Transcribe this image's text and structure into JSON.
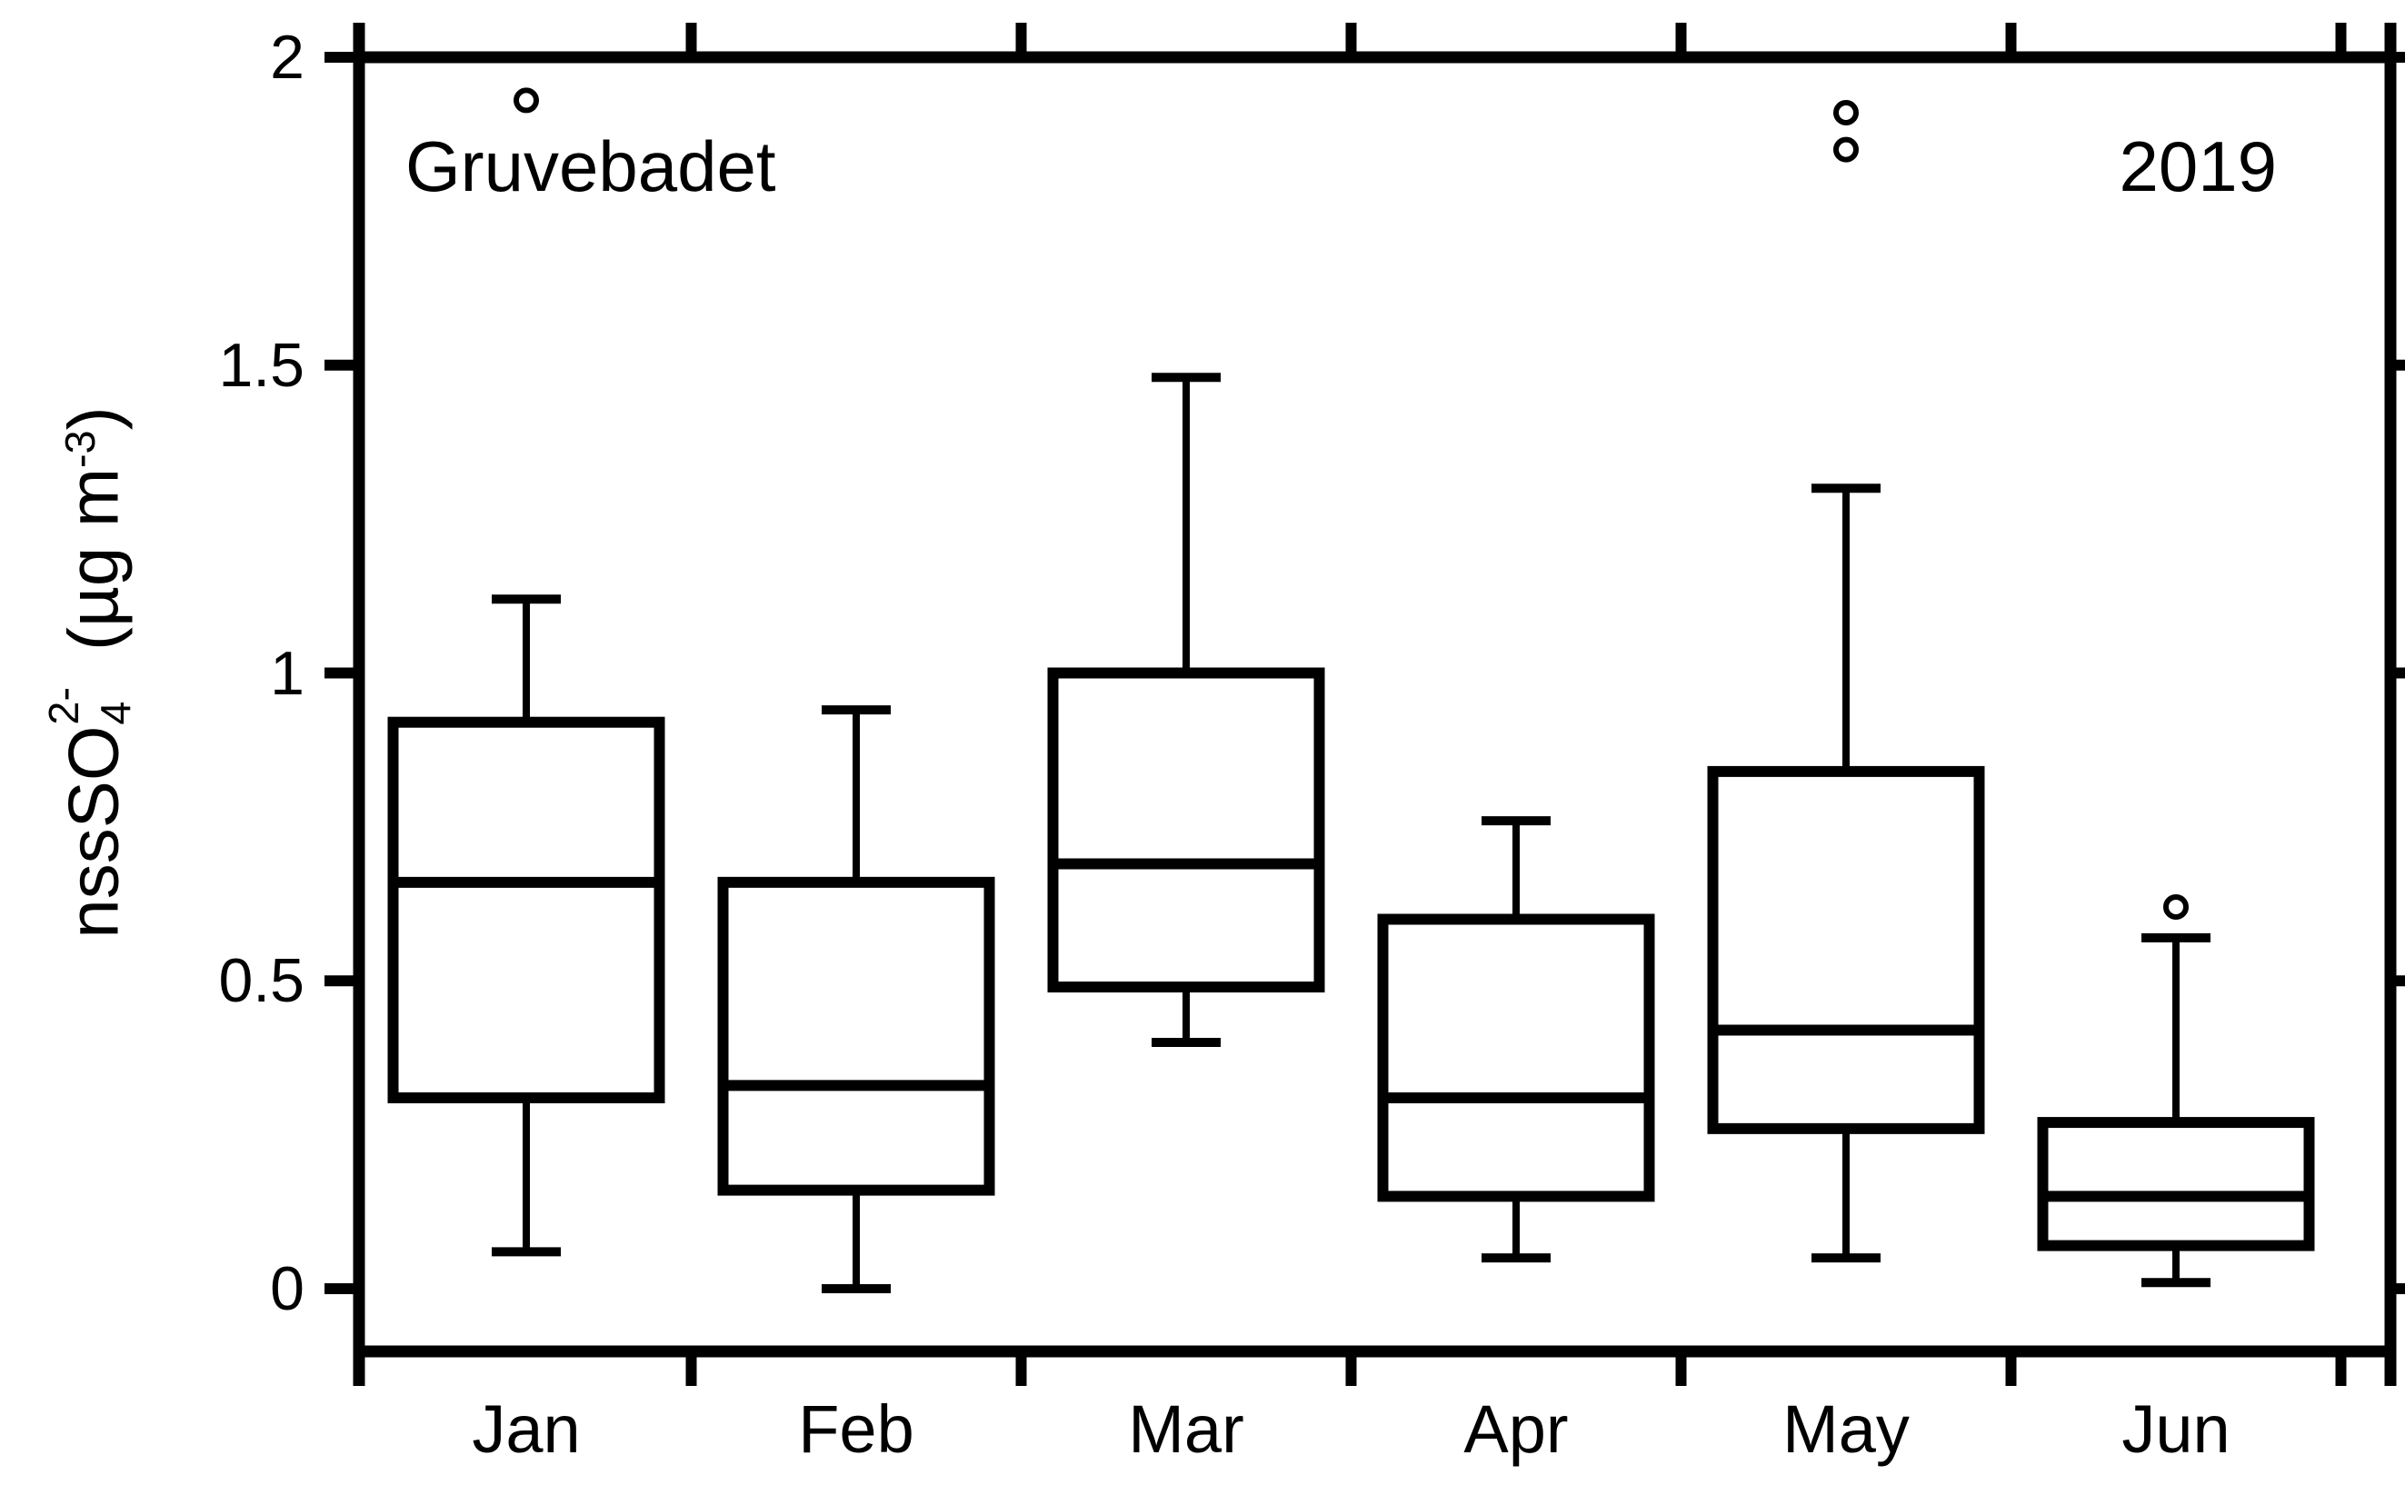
{
  "figure": {
    "station_label": "Gruvebadet",
    "year_label": "2019",
    "colors": {
      "foreground": "#000000",
      "background": "#ffffff"
    },
    "y_axis": {
      "label_parts": {
        "base": "nssSO",
        "sub": "4",
        "sup": "2-",
        "mid": " (µg m",
        "sup2": "-3",
        "end": ")"
      },
      "ticks": [
        {
          "value": 2,
          "label": "2"
        },
        {
          "value": 1.5,
          "label": "1.5"
        },
        {
          "value": 1,
          "label": "1"
        },
        {
          "value": 0.5,
          "label": "0.5"
        },
        {
          "value": 0,
          "label": "0"
        }
      ]
    },
    "x_axis": {
      "categories": [
        "Jan",
        "Feb",
        "Mar",
        "Apr",
        "May",
        "Jun"
      ]
    }
  },
  "chart_data": {
    "type": "box",
    "title": "Gruvebadet 2019",
    "xlabel": "",
    "ylabel": "nssSO4^2- (µg m^-3)",
    "ylim": [
      0,
      2
    ],
    "yticks": [
      0,
      0.5,
      1,
      1.5,
      2
    ],
    "grid": false,
    "legend_position": "none",
    "categories": [
      "Jan",
      "Feb",
      "Mar",
      "Apr",
      "May",
      "Jun"
    ],
    "series": [
      {
        "name": "Jan",
        "min": 0.06,
        "q1": 0.31,
        "median": 0.66,
        "q3": 0.92,
        "max": 1.12,
        "outliers": [
          1.93
        ]
      },
      {
        "name": "Feb",
        "min": 0.0,
        "q1": 0.16,
        "median": 0.33,
        "q3": 0.66,
        "max": 0.94,
        "outliers": []
      },
      {
        "name": "Mar",
        "min": 0.4,
        "q1": 0.49,
        "median": 0.69,
        "q3": 1.0,
        "max": 1.48,
        "outliers": []
      },
      {
        "name": "Apr",
        "min": 0.05,
        "q1": 0.15,
        "median": 0.31,
        "q3": 0.6,
        "max": 0.76,
        "outliers": []
      },
      {
        "name": "May",
        "min": 0.05,
        "q1": 0.26,
        "median": 0.42,
        "q3": 0.84,
        "max": 1.3,
        "outliers": [
          1.91,
          1.85
        ]
      },
      {
        "name": "Jun",
        "min": 0.01,
        "q1": 0.07,
        "median": 0.15,
        "q3": 0.27,
        "max": 0.57,
        "outliers": [
          0.62
        ]
      }
    ]
  }
}
